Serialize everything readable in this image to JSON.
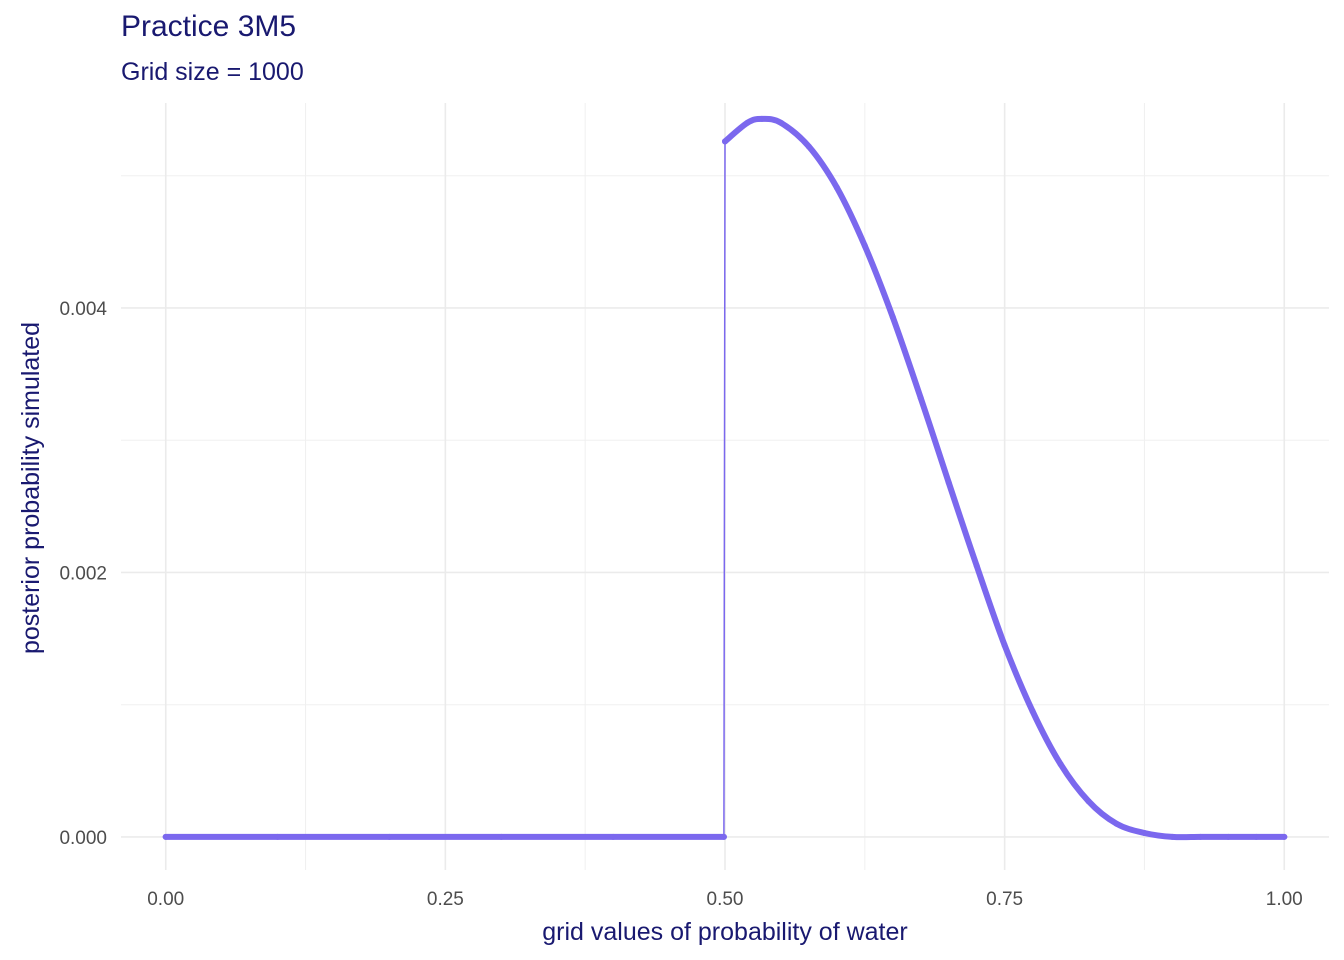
{
  "chart_data": {
    "type": "line",
    "title": "Practice 3M5",
    "subtitle": "Grid size = 1000",
    "xlabel": "grid values of probability of water",
    "ylabel": "posterior probability simulated",
    "xlim": [
      -0.04,
      1.04
    ],
    "ylim": [
      -0.00025,
      0.00555
    ],
    "x_ticks": [
      0.0,
      0.25,
      0.5,
      0.75,
      1.0
    ],
    "x_tick_labels": [
      "0.00",
      "0.25",
      "0.50",
      "0.75",
      "1.00"
    ],
    "y_ticks": [
      0.0,
      0.002,
      0.004
    ],
    "y_tick_labels": [
      "0.000",
      "0.002",
      "0.004"
    ],
    "grid": true,
    "line_color": "#7B68EE",
    "series": [
      {
        "x": [
          0.0,
          0.1,
          0.2,
          0.3,
          0.4,
          0.499,
          0.5,
          0.52,
          0.533,
          0.55,
          0.575,
          0.6,
          0.625,
          0.65,
          0.675,
          0.7,
          0.725,
          0.75,
          0.775,
          0.8,
          0.825,
          0.85,
          0.875,
          0.9,
          0.925,
          0.95,
          0.975,
          1.0
        ],
        "y": [
          0.0,
          0.0,
          0.0,
          0.0,
          0.0,
          0.0,
          0.00526,
          0.0054,
          0.00543,
          0.0054,
          0.00522,
          0.00491,
          0.00447,
          0.00393,
          0.00332,
          0.00268,
          0.00205,
          0.00145,
          0.00095,
          0.00055,
          0.00027,
          0.0001,
          3e-05,
          0.0,
          0.0,
          0.0,
          0.0,
          0.0
        ]
      }
    ]
  }
}
